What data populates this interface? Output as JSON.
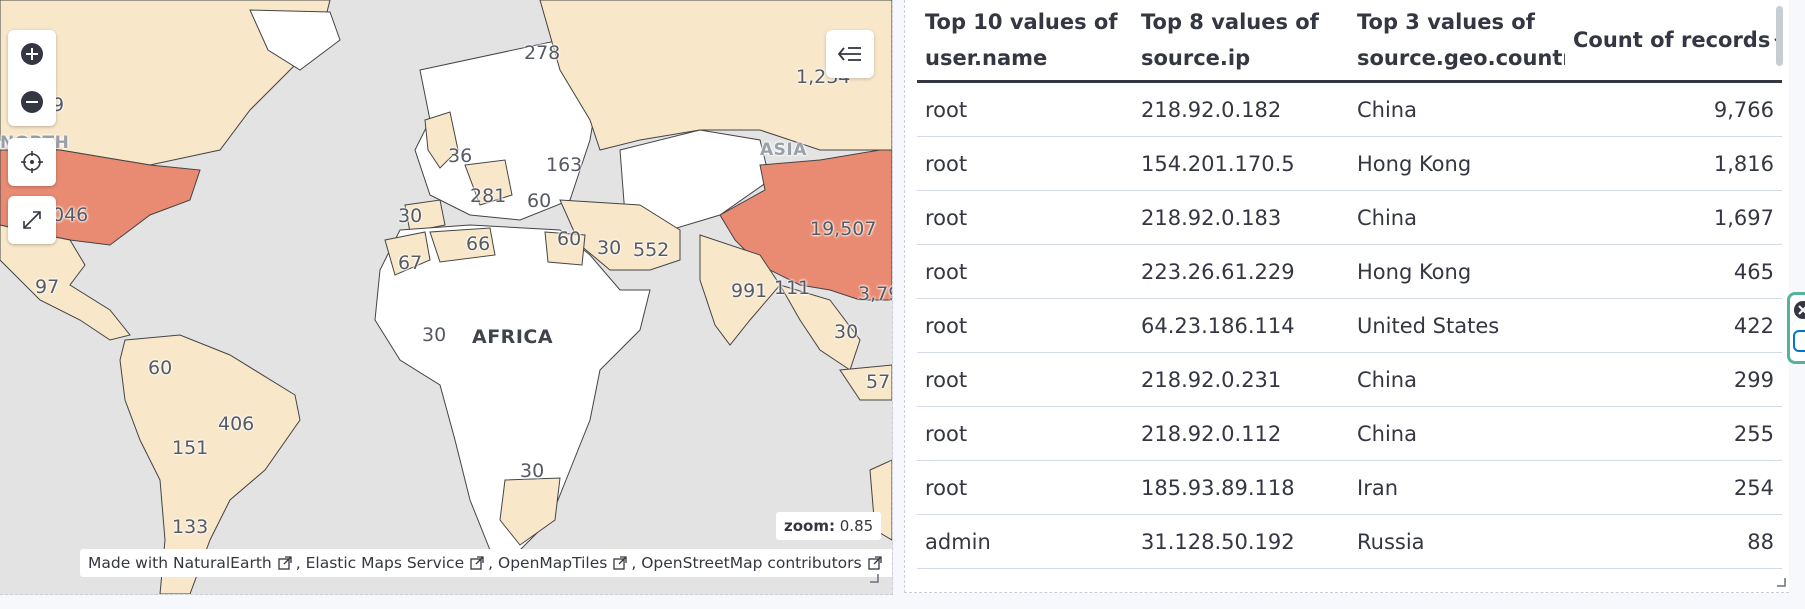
{
  "map": {
    "region_labels": {
      "africa": "AFRICA",
      "asia": "ASIA",
      "north_america": "NORTH"
    },
    "counts": {
      "russia": "278",
      "russia_east": "1,234",
      "usa": "046",
      "canada_partial": "9",
      "uk": "36",
      "scandinavia_finland": "163",
      "germany": "281",
      "turkey": "60",
      "spain": "30",
      "morocco": "67",
      "algeria": "66",
      "egypt": "60",
      "saudi_arabia": "30",
      "iran": "552",
      "india": "991",
      "myanmar": "111",
      "china": "19,507",
      "hong_kong": "3,79",
      "vietnam": "30",
      "indonesia": "57",
      "mexico": "97",
      "niger_chad": "30",
      "south_africa": "30",
      "colombia": "60",
      "brazil": "406",
      "peru": "151",
      "argentina": "133"
    },
    "zoom": {
      "label": "zoom:",
      "value": "0.85"
    },
    "attribution": {
      "items": [
        "Made with NaturalEarth",
        "Elastic Maps Service",
        "OpenMapTiles",
        "OpenStreetMap contributors"
      ],
      "separator": ","
    },
    "colors": {
      "ocean": "#e3e3e3",
      "no_data": "#ffffff",
      "low": "#f8e7c9",
      "high": "#e98b72",
      "border": "#444"
    },
    "controls": {
      "zoom_in_icon": "plus-icon",
      "zoom_out_icon": "minus-icon",
      "locate_icon": "crosshair-icon",
      "fullscreen_icon": "expand-icon",
      "legend_icon": "collapse-left-icon"
    }
  },
  "table": {
    "columns": [
      {
        "line1": "Top 10 values of",
        "line2": "user.name"
      },
      {
        "line1": "Top 8 values of",
        "line2": "source.ip"
      },
      {
        "line1": "Top 3 values of",
        "line2": "source.geo.country_name"
      },
      {
        "line1": "Count of records",
        "line2": ""
      }
    ],
    "sort_icon": "arrow-down-icon",
    "rows": [
      {
        "user": "root",
        "ip": "218.92.0.182",
        "country": "China",
        "count": "9,766"
      },
      {
        "user": "root",
        "ip": "154.201.170.5",
        "country": "Hong Kong",
        "count": "1,816"
      },
      {
        "user": "root",
        "ip": "218.92.0.183",
        "country": "China",
        "count": "1,697"
      },
      {
        "user": "root",
        "ip": "223.26.61.229",
        "country": "Hong Kong",
        "count": "465"
      },
      {
        "user": "root",
        "ip": "64.23.186.114",
        "country": "United States",
        "count": "422"
      },
      {
        "user": "root",
        "ip": "218.92.0.231",
        "country": "China",
        "count": "299"
      },
      {
        "user": "root",
        "ip": "218.92.0.112",
        "country": "China",
        "count": "255"
      },
      {
        "user": "root",
        "ip": "185.93.89.118",
        "country": "Iran",
        "count": "254"
      },
      {
        "user": "admin",
        "ip": "31.128.50.192",
        "country": "Russia",
        "count": "88"
      }
    ]
  }
}
